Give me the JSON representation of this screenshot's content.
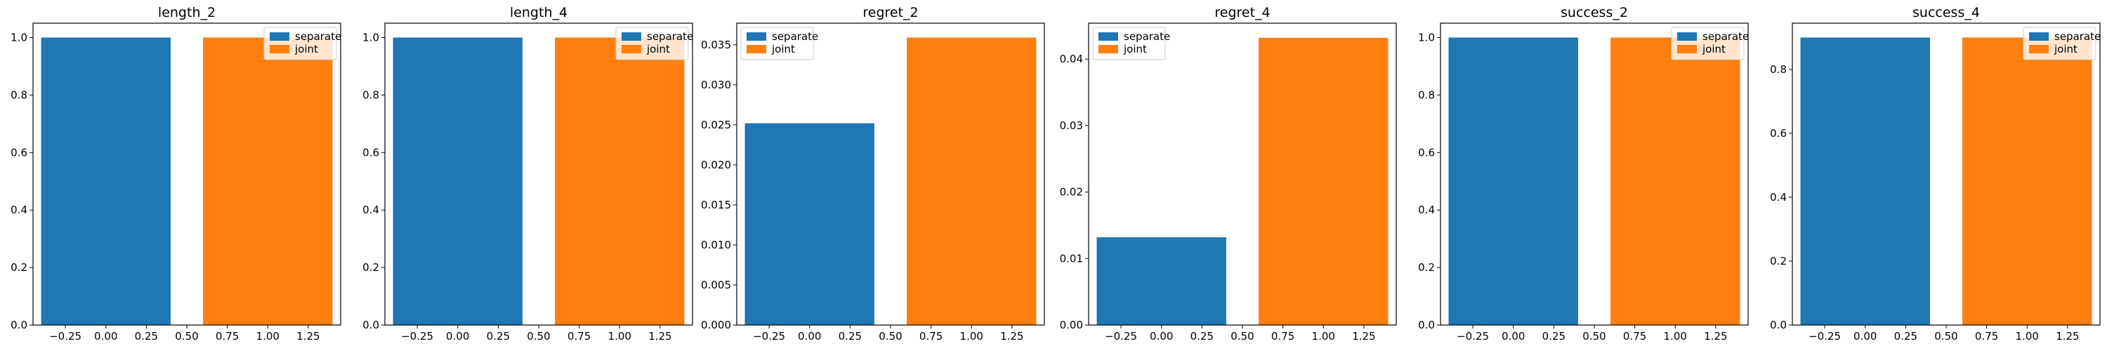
{
  "chart_data": [
    {
      "type": "bar",
      "title": "length_2",
      "x": [
        0,
        1
      ],
      "series": [
        {
          "name": "separate",
          "x": 0,
          "value": 1.0,
          "color": "#1f77b4"
        },
        {
          "name": "joint",
          "x": 1,
          "value": 1.0,
          "color": "#ff7f0e"
        }
      ],
      "xlim": [
        -0.45,
        1.45
      ],
      "ylim": [
        0,
        1.05
      ],
      "xticks": [
        -0.25,
        0.0,
        0.25,
        0.5,
        0.75,
        1.0,
        1.25
      ],
      "xtick_labels": [
        "−0.25",
        "0.00",
        "0.25",
        "0.50",
        "0.75",
        "1.00",
        "1.25"
      ],
      "yticks": [
        0,
        0.2,
        0.4,
        0.6,
        0.8,
        1.0
      ],
      "ytick_labels": [
        "0.0",
        "0.2",
        "0.4",
        "0.6",
        "0.8",
        "1.0"
      ],
      "legend": "top-right",
      "xlabel": "",
      "ylabel": ""
    },
    {
      "type": "bar",
      "title": "length_4",
      "x": [
        0,
        1
      ],
      "series": [
        {
          "name": "separate",
          "x": 0,
          "value": 1.0,
          "color": "#1f77b4"
        },
        {
          "name": "joint",
          "x": 1,
          "value": 1.0,
          "color": "#ff7f0e"
        }
      ],
      "xlim": [
        -0.45,
        1.45
      ],
      "ylim": [
        0,
        1.05
      ],
      "xticks": [
        -0.25,
        0.0,
        0.25,
        0.5,
        0.75,
        1.0,
        1.25
      ],
      "xtick_labels": [
        "−0.25",
        "0.00",
        "0.25",
        "0.50",
        "0.75",
        "1.00",
        "1.25"
      ],
      "yticks": [
        0,
        0.2,
        0.4,
        0.6,
        0.8,
        1.0
      ],
      "ytick_labels": [
        "0.0",
        "0.2",
        "0.4",
        "0.6",
        "0.8",
        "1.0"
      ],
      "legend": "top-right",
      "xlabel": "",
      "ylabel": ""
    },
    {
      "type": "bar",
      "title": "regret_2",
      "x": [
        0,
        1
      ],
      "series": [
        {
          "name": "separate",
          "x": 0,
          "value": 0.0252,
          "color": "#1f77b4"
        },
        {
          "name": "joint",
          "x": 1,
          "value": 0.0359,
          "color": "#ff7f0e"
        }
      ],
      "xlim": [
        -0.45,
        1.45
      ],
      "ylim": [
        0,
        0.0377
      ],
      "xticks": [
        -0.25,
        0.0,
        0.25,
        0.5,
        0.75,
        1.0,
        1.25
      ],
      "xtick_labels": [
        "−0.25",
        "0.00",
        "0.25",
        "0.50",
        "0.75",
        "1.00",
        "1.25"
      ],
      "yticks": [
        0,
        0.005,
        0.01,
        0.015,
        0.02,
        0.025,
        0.03,
        0.035
      ],
      "ytick_labels": [
        "0.000",
        "0.005",
        "0.010",
        "0.015",
        "0.020",
        "0.025",
        "0.030",
        "0.035"
      ],
      "legend": "top-left",
      "xlabel": "",
      "ylabel": ""
    },
    {
      "type": "bar",
      "title": "regret_4",
      "x": [
        0,
        1
      ],
      "series": [
        {
          "name": "separate",
          "x": 0,
          "value": 0.0132,
          "color": "#1f77b4"
        },
        {
          "name": "joint",
          "x": 1,
          "value": 0.0432,
          "color": "#ff7f0e"
        }
      ],
      "xlim": [
        -0.45,
        1.45
      ],
      "ylim": [
        0,
        0.0454
      ],
      "xticks": [
        -0.25,
        0.0,
        0.25,
        0.5,
        0.75,
        1.0,
        1.25
      ],
      "xtick_labels": [
        "−0.25",
        "0.00",
        "0.25",
        "0.50",
        "0.75",
        "1.00",
        "1.25"
      ],
      "yticks": [
        0,
        0.01,
        0.02,
        0.03,
        0.04
      ],
      "ytick_labels": [
        "0.00",
        "0.01",
        "0.02",
        "0.03",
        "0.04"
      ],
      "legend": "top-left",
      "xlabel": "",
      "ylabel": ""
    },
    {
      "type": "bar",
      "title": "success_2",
      "x": [
        0,
        1
      ],
      "series": [
        {
          "name": "separate",
          "x": 0,
          "value": 1.0,
          "color": "#1f77b4"
        },
        {
          "name": "joint",
          "x": 1,
          "value": 1.0,
          "color": "#ff7f0e"
        }
      ],
      "xlim": [
        -0.45,
        1.45
      ],
      "ylim": [
        0,
        1.05
      ],
      "xticks": [
        -0.25,
        0.0,
        0.25,
        0.5,
        0.75,
        1.0,
        1.25
      ],
      "xtick_labels": [
        "−0.25",
        "0.00",
        "0.25",
        "0.50",
        "0.75",
        "1.00",
        "1.25"
      ],
      "yticks": [
        0,
        0.2,
        0.4,
        0.6,
        0.8,
        1.0
      ],
      "ytick_labels": [
        "0.0",
        "0.2",
        "0.4",
        "0.6",
        "0.8",
        "1.0"
      ],
      "legend": "top-right",
      "xlabel": "",
      "ylabel": ""
    },
    {
      "type": "bar",
      "title": "success_4",
      "x": [
        0,
        1
      ],
      "series": [
        {
          "name": "separate",
          "x": 0,
          "value": 0.9,
          "color": "#1f77b4"
        },
        {
          "name": "joint",
          "x": 1,
          "value": 0.9,
          "color": "#ff7f0e"
        }
      ],
      "xlim": [
        -0.45,
        1.45
      ],
      "ylim": [
        0,
        0.945
      ],
      "xticks": [
        -0.25,
        0.0,
        0.25,
        0.5,
        0.75,
        1.0,
        1.25
      ],
      "xtick_labels": [
        "−0.25",
        "0.00",
        "0.25",
        "0.50",
        "0.75",
        "1.00",
        "1.25"
      ],
      "yticks": [
        0,
        0.2,
        0.4,
        0.6,
        0.8
      ],
      "ytick_labels": [
        "0.0",
        "0.2",
        "0.4",
        "0.6",
        "0.8"
      ],
      "legend": "top-right",
      "xlabel": "",
      "ylabel": ""
    }
  ]
}
